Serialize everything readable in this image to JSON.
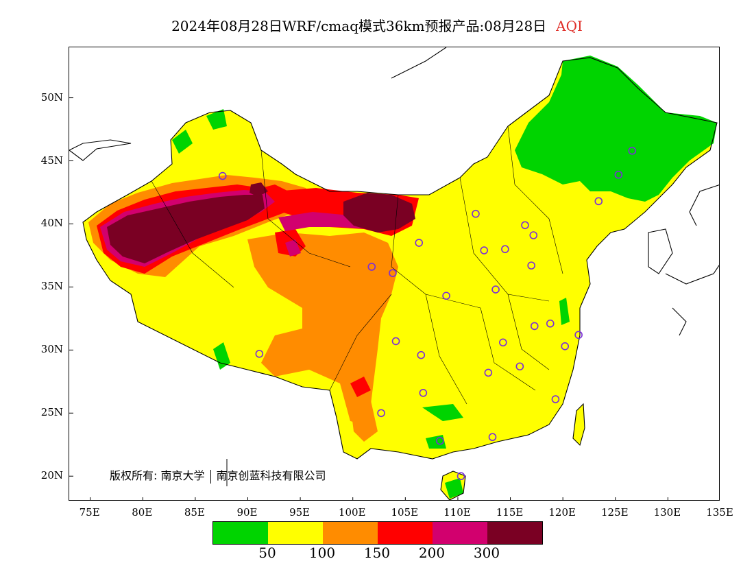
{
  "title": {
    "main": "2024年08月28日WRF/cmaq模式36km预报产品:08月28日",
    "variable": "AQI"
  },
  "axes": {
    "lat_labels": [
      "50N",
      "45N",
      "40N",
      "35N",
      "30N",
      "25N",
      "20N"
    ],
    "lon_labels": [
      "75E",
      "80E",
      "85E",
      "90E",
      "95E",
      "100E",
      "105E",
      "110E",
      "115E",
      "120E",
      "125E",
      "130E",
      "135E"
    ],
    "lon_range": [
      73,
      135
    ],
    "lat_range": [
      18,
      54
    ]
  },
  "copyright": {
    "prefix": "版权所有:",
    "org1": "南京大学",
    "org2": "南京创蓝科技有限公司"
  },
  "legend": {
    "colors": [
      "#00d400",
      "#ffff00",
      "#ff8c00",
      "#ff0000",
      "#d2006e",
      "#7a0023"
    ],
    "values": [
      "50",
      "100",
      "150",
      "200",
      "300"
    ]
  },
  "stations": [
    {
      "lon": 87.6,
      "lat": 43.8
    },
    {
      "lon": 91.1,
      "lat": 29.7
    },
    {
      "lon": 101.8,
      "lat": 36.6
    },
    {
      "lon": 103.8,
      "lat": 36.1
    },
    {
      "lon": 106.3,
      "lat": 38.5
    },
    {
      "lon": 111.7,
      "lat": 40.8
    },
    {
      "lon": 112.5,
      "lat": 37.9
    },
    {
      "lon": 114.5,
      "lat": 38.0
    },
    {
      "lon": 116.4,
      "lat": 39.9
    },
    {
      "lon": 117.2,
      "lat": 39.1
    },
    {
      "lon": 117.0,
      "lat": 36.7
    },
    {
      "lon": 113.6,
      "lat": 34.8
    },
    {
      "lon": 108.9,
      "lat": 34.3
    },
    {
      "lon": 104.1,
      "lat": 30.7
    },
    {
      "lon": 106.5,
      "lat": 29.6
    },
    {
      "lon": 106.7,
      "lat": 26.6
    },
    {
      "lon": 102.7,
      "lat": 25.0
    },
    {
      "lon": 108.3,
      "lat": 22.8
    },
    {
      "lon": 113.3,
      "lat": 23.1
    },
    {
      "lon": 110.3,
      "lat": 20.0
    },
    {
      "lon": 112.9,
      "lat": 28.2
    },
    {
      "lon": 114.3,
      "lat": 30.6
    },
    {
      "lon": 115.9,
      "lat": 28.7
    },
    {
      "lon": 117.3,
      "lat": 31.9
    },
    {
      "lon": 118.8,
      "lat": 32.1
    },
    {
      "lon": 120.2,
      "lat": 30.3
    },
    {
      "lon": 121.5,
      "lat": 31.2
    },
    {
      "lon": 119.3,
      "lat": 26.1
    },
    {
      "lon": 123.4,
      "lat": 41.8
    },
    {
      "lon": 125.3,
      "lat": 43.9
    },
    {
      "lon": 126.6,
      "lat": 45.8
    }
  ]
}
